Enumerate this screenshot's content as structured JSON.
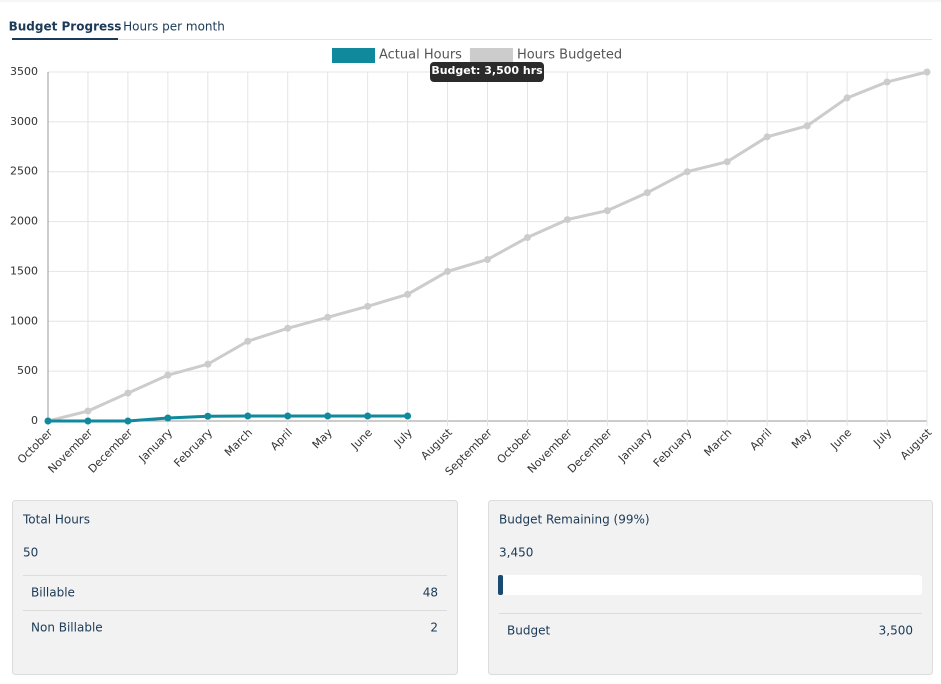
{
  "tabs": [
    "Budget Progress",
    "Hours per month"
  ],
  "chart_data": {
    "type": "line",
    "categories": [
      "October",
      "November",
      "December",
      "January",
      "February",
      "March",
      "April",
      "May",
      "June",
      "July",
      "August",
      "September",
      "October",
      "November",
      "December",
      "January",
      "February",
      "March",
      "April",
      "May",
      "June",
      "July",
      "August"
    ],
    "series": [
      {
        "name": "Actual Hours",
        "color": "#10899c",
        "values": [
          0,
          0,
          0,
          30,
          48,
          50,
          50,
          50,
          50,
          50,
          null,
          null,
          null,
          null,
          null,
          null,
          null,
          null,
          null,
          null,
          null,
          null,
          null
        ]
      },
      {
        "name": "Hours Budgeted",
        "color": "#cccccc",
        "values": [
          0,
          100,
          280,
          460,
          570,
          800,
          930,
          1040,
          1150,
          1270,
          1500,
          1620,
          1840,
          2020,
          2110,
          2290,
          2500,
          2600,
          2850,
          2960,
          3240,
          3400,
          3500
        ]
      }
    ],
    "ylim": [
      0,
      3500
    ],
    "yticks": [
      0,
      500,
      1000,
      1500,
      2000,
      2500,
      3000,
      3500
    ],
    "grid": true,
    "legend": "top",
    "annotation": "Budget: 3,500 hrs"
  },
  "total_card": {
    "title": "Total Hours",
    "value": "50",
    "rows": [
      {
        "label": "Billable",
        "value": "48"
      },
      {
        "label": "Non Billable",
        "value": "2"
      }
    ]
  },
  "budget_card": {
    "title": "Budget Remaining (99%)",
    "value": "3,450",
    "rows": [
      {
        "label": "Budget",
        "value": "3,500"
      }
    ]
  }
}
